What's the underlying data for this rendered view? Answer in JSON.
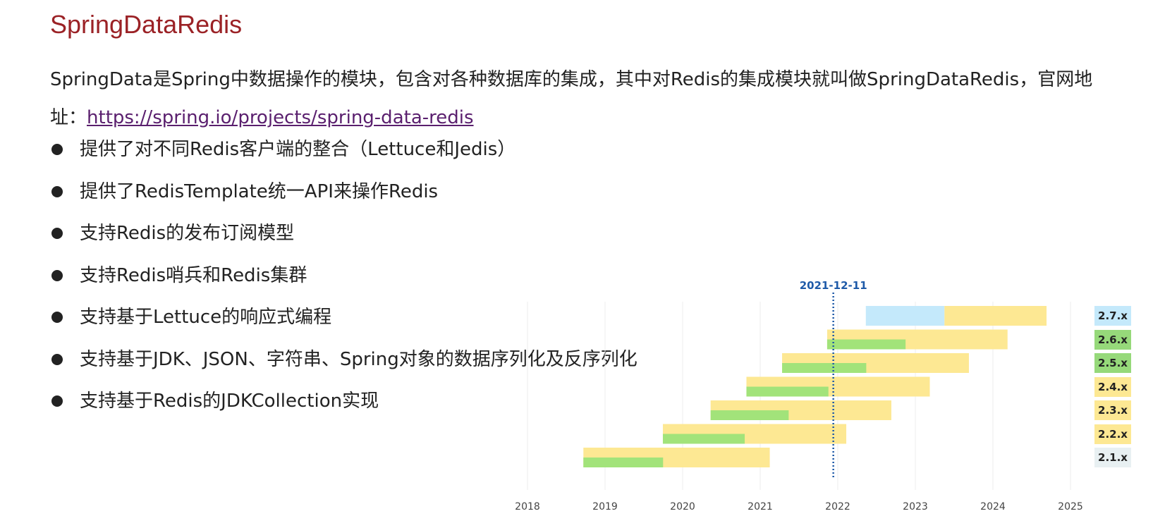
{
  "page": {
    "title": "SpringDataRedis",
    "intro_text": "SpringData是Spring中数据操作的模块，包含对各种数据库的集成，其中对Redis的集成模块就叫做SpringDataRedis，官网地址：",
    "link_text": "https://spring.io/projects/spring-data-redis"
  },
  "bullets": [
    "提供了对不同Redis客户端的整合（Lettuce和Jedis）",
    "提供了RedisTemplate统一API来操作Redis",
    "支持Redis的发布订阅模型",
    "支持Redis哨兵和Redis集群",
    "支持基于Lettuce的响应式编程",
    "支持基于JDK、JSON、字符串、Spring对象的数据序列化及反序列化",
    "支持基于Redis的JDKCollection实现"
  ],
  "chart_data": {
    "type": "timeline",
    "marker_date": "2021-12-11",
    "x_ticks": [
      "2018",
      "2019",
      "2020",
      "2021",
      "2022",
      "2023",
      "2024",
      "2025"
    ],
    "x_range": [
      "2017-11-01",
      "2025-06-30"
    ],
    "colors": {
      "active": "#a2e37a",
      "maintained": "#fde893",
      "future": "#c4e9fb",
      "marker": "#1e5aa8",
      "chip_active": "#96d97a",
      "chip_maintained": "#fde893",
      "chip_future": "#c4e9fb",
      "chip_eol": "#e8f0f2"
    },
    "versions": [
      {
        "name": "2.7.x",
        "chip": "future",
        "future_start": "2022-05-13",
        "oss_end": "2023-05-18",
        "commercial_end": "2024-09-10"
      },
      {
        "name": "2.6.x",
        "chip": "active",
        "active_start": "2021-11-12",
        "oss_end": "2022-11-16",
        "commercial_end": "2024-03-10"
      },
      {
        "name": "2.5.x",
        "chip": "active",
        "active_start": "2021-04-14",
        "oss_end": "2022-05-15",
        "commercial_end": "2023-09-10"
      },
      {
        "name": "2.4.x",
        "chip": "maintained",
        "active_start": "2020-10-28",
        "oss_end": "2021-11-18",
        "commercial_end": "2023-03-10"
      },
      {
        "name": "2.3.x",
        "chip": "maintained",
        "active_start": "2020-05-12",
        "oss_end": "2021-05-15",
        "commercial_end": "2022-09-10"
      },
      {
        "name": "2.2.x",
        "chip": "maintained",
        "active_start": "2019-09-30",
        "oss_end": "2020-10-20",
        "commercial_end": "2022-02-10"
      },
      {
        "name": "2.1.x",
        "chip": "eol",
        "active_start": "2018-09-21",
        "oss_end": "2019-10-01",
        "commercial_end": "2021-02-15"
      }
    ]
  }
}
